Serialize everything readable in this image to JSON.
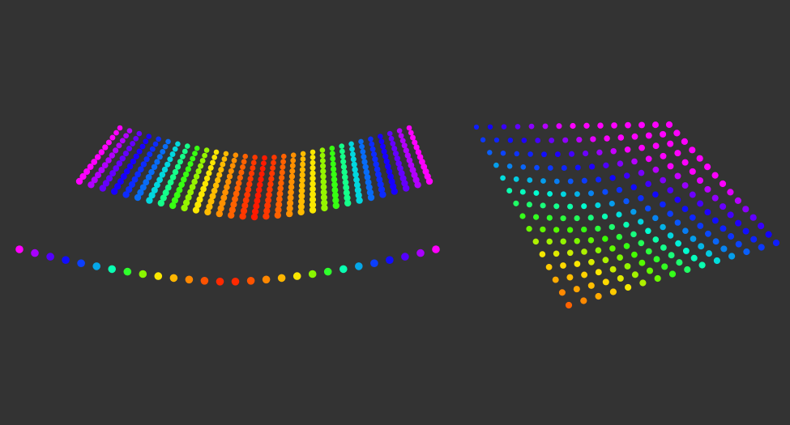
{
  "scene": {
    "background_color": "#333333",
    "palette": [
      "#ff1a00",
      "#ff8a00",
      "#ffe600",
      "#3cff00",
      "#00ffd5",
      "#0a4bff",
      "#1200ff",
      "#8a00ff",
      "#ff00ff"
    ],
    "objects": [
      {
        "name": "curved-sheet-point-cloud",
        "colormap": "rainbow-by-height",
        "rows": 12,
        "cols": 31
      },
      {
        "name": "curve-line-point-cloud",
        "colormap": "rainbow-by-height",
        "points": 28
      },
      {
        "name": "tilted-sheet-point-cloud",
        "colormap": "rainbow-by-height",
        "rows": 15,
        "cols": 15
      }
    ]
  }
}
